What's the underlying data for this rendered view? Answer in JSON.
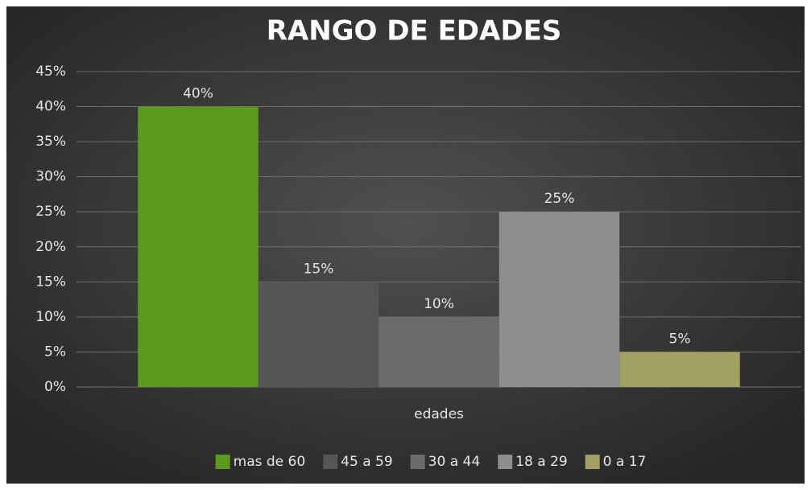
{
  "chart_data": {
    "type": "bar",
    "title": "RANGO DE EDADES",
    "categories": [
      "edades"
    ],
    "series": [
      {
        "name": "mas de 60",
        "color": "#5b9a1c",
        "values": [
          40
        ],
        "value_labels": [
          "40%"
        ]
      },
      {
        "name": "45 a 59",
        "color": "#555555",
        "values": [
          15
        ],
        "value_labels": [
          "15%"
        ]
      },
      {
        "name": "30 a 44",
        "color": "#6b6b6b",
        "values": [
          10
        ],
        "value_labels": [
          "10%"
        ]
      },
      {
        "name": "18 a 29",
        "color": "#8e8e8e",
        "values": [
          25
        ],
        "value_labels": [
          "25%"
        ]
      },
      {
        "name": "0 a 17",
        "color": "#a0a060",
        "values": [
          5
        ],
        "value_labels": [
          "5%"
        ]
      }
    ],
    "ylim": [
      0,
      45
    ],
    "yticks": [
      {
        "value": 0,
        "label": "0%"
      },
      {
        "value": 5,
        "label": "5%"
      },
      {
        "value": 10,
        "label": "10%"
      },
      {
        "value": 15,
        "label": "15%"
      },
      {
        "value": 20,
        "label": "20%"
      },
      {
        "value": 25,
        "label": "25%"
      },
      {
        "value": 30,
        "label": "30%"
      },
      {
        "value": 35,
        "label": "35%"
      },
      {
        "value": 40,
        "label": "40%"
      },
      {
        "value": 45,
        "label": "45%"
      }
    ],
    "grid": true,
    "legend": "bottom"
  }
}
